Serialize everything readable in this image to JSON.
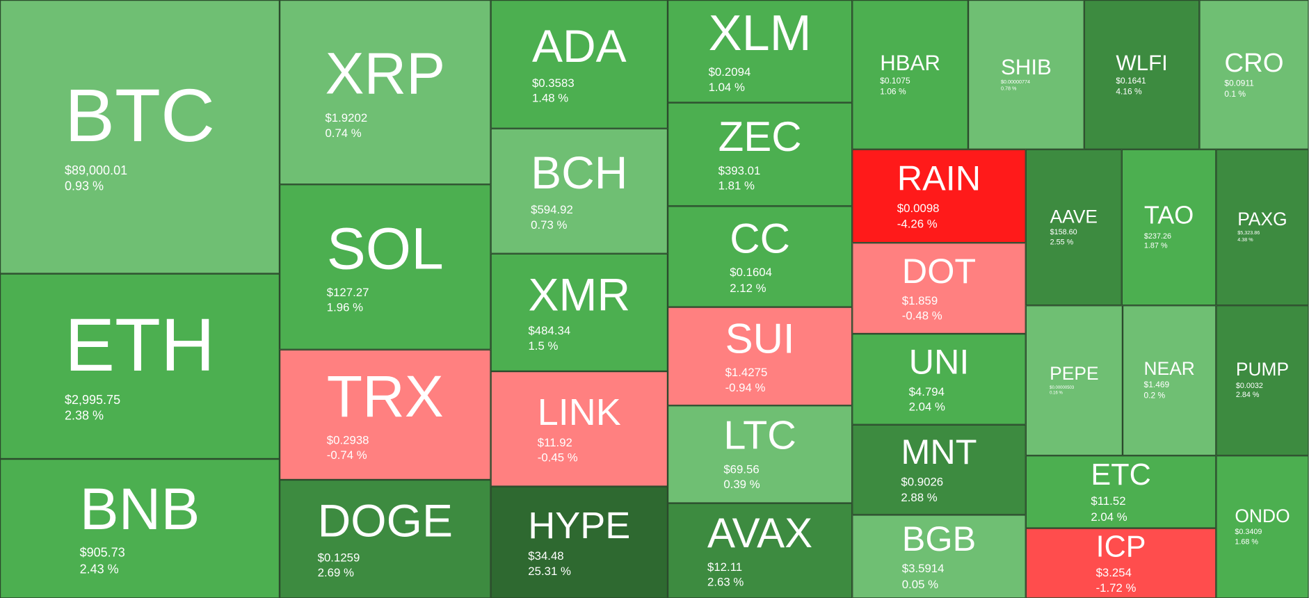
{
  "colors": {
    "light_green": "#6fbf73",
    "green": "#4caf50",
    "dark_green": "#3d8b40",
    "darkest_green": "#2e6930",
    "pink": "#ff8080",
    "red": "#ff1a1a",
    "light_red": "#ff4d4d"
  },
  "tiles": [
    {
      "symbol": "BTC",
      "price": "$89,000.01",
      "change": "0.93 %",
      "color": "#6fbf73"
    },
    {
      "symbol": "ETH",
      "price": "$2,995.75",
      "change": "2.38 %",
      "color": "#4caf50"
    },
    {
      "symbol": "BNB",
      "price": "$905.73",
      "change": "2.43 %",
      "color": "#4caf50"
    },
    {
      "symbol": "XRP",
      "price": "$1.9202",
      "change": "0.74 %",
      "color": "#6fbf73"
    },
    {
      "symbol": "SOL",
      "price": "$127.27",
      "change": "1.96 %",
      "color": "#4caf50"
    },
    {
      "symbol": "TRX",
      "price": "$0.2938",
      "change": "-0.74 %",
      "color": "#ff8080"
    },
    {
      "symbol": "DOGE",
      "price": "$0.1259",
      "change": "2.69 %",
      "color": "#3d8b40"
    },
    {
      "symbol": "ADA",
      "price": "$0.3583",
      "change": "1.48 %",
      "color": "#4caf50"
    },
    {
      "symbol": "BCH",
      "price": "$594.92",
      "change": "0.73 %",
      "color": "#6fbf73"
    },
    {
      "symbol": "XMR",
      "price": "$484.34",
      "change": "1.5 %",
      "color": "#4caf50"
    },
    {
      "symbol": "LINK",
      "price": "$11.92",
      "change": "-0.45 %",
      "color": "#ff8080"
    },
    {
      "symbol": "HYPE",
      "price": "$34.48",
      "change": "25.31 %",
      "color": "#2e6930"
    },
    {
      "symbol": "XLM",
      "price": "$0.2094",
      "change": "1.04 %",
      "color": "#4caf50"
    },
    {
      "symbol": "ZEC",
      "price": "$393.01",
      "change": "1.81 %",
      "color": "#4caf50"
    },
    {
      "symbol": "CC",
      "price": "$0.1604",
      "change": "2.12 %",
      "color": "#4caf50"
    },
    {
      "symbol": "SUI",
      "price": "$1.4275",
      "change": "-0.94 %",
      "color": "#ff8080"
    },
    {
      "symbol": "LTC",
      "price": "$69.56",
      "change": "0.39 %",
      "color": "#6fbf73"
    },
    {
      "symbol": "AVAX",
      "price": "$12.11",
      "change": "2.63 %",
      "color": "#3d8b40"
    },
    {
      "symbol": "HBAR",
      "price": "$0.1075",
      "change": "1.06 %",
      "color": "#4caf50"
    },
    {
      "symbol": "SHIB",
      "price": "$0.00000774",
      "change": "0.78 %",
      "color": "#6fbf73"
    },
    {
      "symbol": "WLFI",
      "price": "$0.1641",
      "change": "4.16 %",
      "color": "#3d8b40"
    },
    {
      "symbol": "CRO",
      "price": "$0.0911",
      "change": "0.1 %",
      "color": "#6fbf73"
    },
    {
      "symbol": "RAIN",
      "price": "$0.0098",
      "change": "-4.26 %",
      "color": "#ff1a1a"
    },
    {
      "symbol": "DOT",
      "price": "$1.859",
      "change": "-0.48 %",
      "color": "#ff8080"
    },
    {
      "symbol": "UNI",
      "price": "$4.794",
      "change": "2.04 %",
      "color": "#4caf50"
    },
    {
      "symbol": "MNT",
      "price": "$0.9026",
      "change": "2.88 %",
      "color": "#3d8b40"
    },
    {
      "symbol": "BGB",
      "price": "$3.5914",
      "change": "0.05 %",
      "color": "#6fbf73"
    },
    {
      "symbol": "AAVE",
      "price": "$158.60",
      "change": "2.55 %",
      "color": "#3d8b40"
    },
    {
      "symbol": "TAO",
      "price": "$237.26",
      "change": "1.87 %",
      "color": "#4caf50"
    },
    {
      "symbol": "PAXG",
      "price": "$5,323.86",
      "change": "4.38 %",
      "color": "#3d8b40"
    },
    {
      "symbol": "PEPE",
      "price": "$0.00000503",
      "change": "0.16 %",
      "color": "#6fbf73"
    },
    {
      "symbol": "NEAR",
      "price": "$1.469",
      "change": "0.2 %",
      "color": "#6fbf73"
    },
    {
      "symbol": "PUMP",
      "price": "$0.0032",
      "change": "2.84 %",
      "color": "#3d8b40"
    },
    {
      "symbol": "ETC",
      "price": "$11.52",
      "change": "2.04 %",
      "color": "#4caf50"
    },
    {
      "symbol": "ICP",
      "price": "$3.254",
      "change": "-1.72 %",
      "color": "#ff4d4d"
    },
    {
      "symbol": "ONDO",
      "price": "$0.3409",
      "change": "1.68 %",
      "color": "#4caf50"
    }
  ]
}
